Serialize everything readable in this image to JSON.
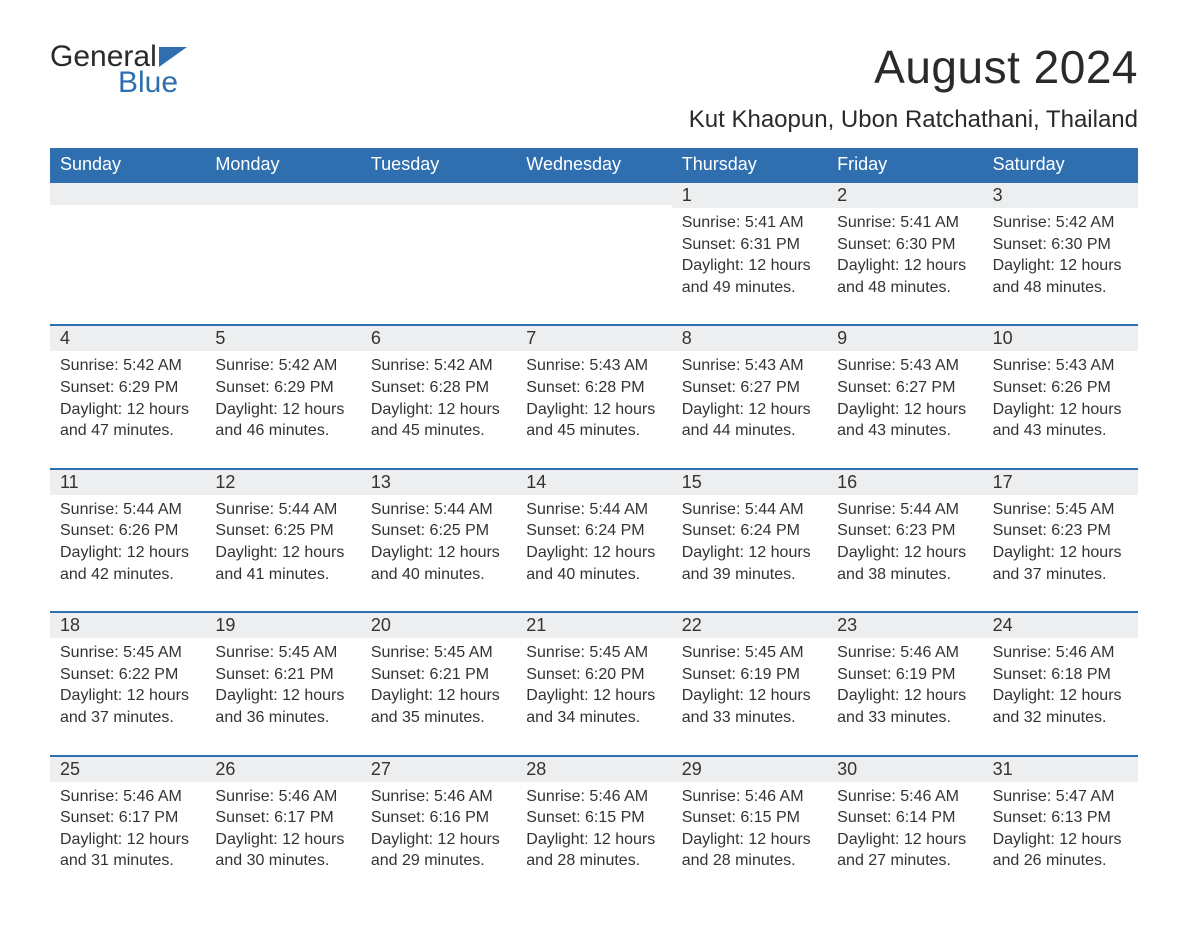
{
  "brand": {
    "name_part1": "General",
    "name_part2": "Blue",
    "text_color": "#2a2a2a",
    "accent_color": "#2f6fb0"
  },
  "title": "August 2024",
  "location": "Kut Khaopun, Ubon Ratchathani, Thailand",
  "colors": {
    "header_bg": "#2f6fb0",
    "header_text": "#ffffff",
    "daynum_bg": "#eceeef",
    "daynum_border": "#2f6fb0",
    "body_text": "#333333",
    "page_bg": "#ffffff"
  },
  "typography": {
    "title_fontsize": 46,
    "location_fontsize": 24,
    "weekday_fontsize": 18,
    "daynum_fontsize": 18,
    "body_fontsize": 16,
    "font_family": "Arial, Helvetica, sans-serif"
  },
  "calendar": {
    "type": "monthly-calendar",
    "columns": 7,
    "weekdays": [
      "Sunday",
      "Monday",
      "Tuesday",
      "Wednesday",
      "Thursday",
      "Friday",
      "Saturday"
    ],
    "leading_blank_cells": 4,
    "days": [
      {
        "n": "1",
        "sunrise": "Sunrise: 5:41 AM",
        "sunset": "Sunset: 6:31 PM",
        "daylight": "Daylight: 12 hours and 49 minutes."
      },
      {
        "n": "2",
        "sunrise": "Sunrise: 5:41 AM",
        "sunset": "Sunset: 6:30 PM",
        "daylight": "Daylight: 12 hours and 48 minutes."
      },
      {
        "n": "3",
        "sunrise": "Sunrise: 5:42 AM",
        "sunset": "Sunset: 6:30 PM",
        "daylight": "Daylight: 12 hours and 48 minutes."
      },
      {
        "n": "4",
        "sunrise": "Sunrise: 5:42 AM",
        "sunset": "Sunset: 6:29 PM",
        "daylight": "Daylight: 12 hours and 47 minutes."
      },
      {
        "n": "5",
        "sunrise": "Sunrise: 5:42 AM",
        "sunset": "Sunset: 6:29 PM",
        "daylight": "Daylight: 12 hours and 46 minutes."
      },
      {
        "n": "6",
        "sunrise": "Sunrise: 5:42 AM",
        "sunset": "Sunset: 6:28 PM",
        "daylight": "Daylight: 12 hours and 45 minutes."
      },
      {
        "n": "7",
        "sunrise": "Sunrise: 5:43 AM",
        "sunset": "Sunset: 6:28 PM",
        "daylight": "Daylight: 12 hours and 45 minutes."
      },
      {
        "n": "8",
        "sunrise": "Sunrise: 5:43 AM",
        "sunset": "Sunset: 6:27 PM",
        "daylight": "Daylight: 12 hours and 44 minutes."
      },
      {
        "n": "9",
        "sunrise": "Sunrise: 5:43 AM",
        "sunset": "Sunset: 6:27 PM",
        "daylight": "Daylight: 12 hours and 43 minutes."
      },
      {
        "n": "10",
        "sunrise": "Sunrise: 5:43 AM",
        "sunset": "Sunset: 6:26 PM",
        "daylight": "Daylight: 12 hours and 43 minutes."
      },
      {
        "n": "11",
        "sunrise": "Sunrise: 5:44 AM",
        "sunset": "Sunset: 6:26 PM",
        "daylight": "Daylight: 12 hours and 42 minutes."
      },
      {
        "n": "12",
        "sunrise": "Sunrise: 5:44 AM",
        "sunset": "Sunset: 6:25 PM",
        "daylight": "Daylight: 12 hours and 41 minutes."
      },
      {
        "n": "13",
        "sunrise": "Sunrise: 5:44 AM",
        "sunset": "Sunset: 6:25 PM",
        "daylight": "Daylight: 12 hours and 40 minutes."
      },
      {
        "n": "14",
        "sunrise": "Sunrise: 5:44 AM",
        "sunset": "Sunset: 6:24 PM",
        "daylight": "Daylight: 12 hours and 40 minutes."
      },
      {
        "n": "15",
        "sunrise": "Sunrise: 5:44 AM",
        "sunset": "Sunset: 6:24 PM",
        "daylight": "Daylight: 12 hours and 39 minutes."
      },
      {
        "n": "16",
        "sunrise": "Sunrise: 5:44 AM",
        "sunset": "Sunset: 6:23 PM",
        "daylight": "Daylight: 12 hours and 38 minutes."
      },
      {
        "n": "17",
        "sunrise": "Sunrise: 5:45 AM",
        "sunset": "Sunset: 6:23 PM",
        "daylight": "Daylight: 12 hours and 37 minutes."
      },
      {
        "n": "18",
        "sunrise": "Sunrise: 5:45 AM",
        "sunset": "Sunset: 6:22 PM",
        "daylight": "Daylight: 12 hours and 37 minutes."
      },
      {
        "n": "19",
        "sunrise": "Sunrise: 5:45 AM",
        "sunset": "Sunset: 6:21 PM",
        "daylight": "Daylight: 12 hours and 36 minutes."
      },
      {
        "n": "20",
        "sunrise": "Sunrise: 5:45 AM",
        "sunset": "Sunset: 6:21 PM",
        "daylight": "Daylight: 12 hours and 35 minutes."
      },
      {
        "n": "21",
        "sunrise": "Sunrise: 5:45 AM",
        "sunset": "Sunset: 6:20 PM",
        "daylight": "Daylight: 12 hours and 34 minutes."
      },
      {
        "n": "22",
        "sunrise": "Sunrise: 5:45 AM",
        "sunset": "Sunset: 6:19 PM",
        "daylight": "Daylight: 12 hours and 33 minutes."
      },
      {
        "n": "23",
        "sunrise": "Sunrise: 5:46 AM",
        "sunset": "Sunset: 6:19 PM",
        "daylight": "Daylight: 12 hours and 33 minutes."
      },
      {
        "n": "24",
        "sunrise": "Sunrise: 5:46 AM",
        "sunset": "Sunset: 6:18 PM",
        "daylight": "Daylight: 12 hours and 32 minutes."
      },
      {
        "n": "25",
        "sunrise": "Sunrise: 5:46 AM",
        "sunset": "Sunset: 6:17 PM",
        "daylight": "Daylight: 12 hours and 31 minutes."
      },
      {
        "n": "26",
        "sunrise": "Sunrise: 5:46 AM",
        "sunset": "Sunset: 6:17 PM",
        "daylight": "Daylight: 12 hours and 30 minutes."
      },
      {
        "n": "27",
        "sunrise": "Sunrise: 5:46 AM",
        "sunset": "Sunset: 6:16 PM",
        "daylight": "Daylight: 12 hours and 29 minutes."
      },
      {
        "n": "28",
        "sunrise": "Sunrise: 5:46 AM",
        "sunset": "Sunset: 6:15 PM",
        "daylight": "Daylight: 12 hours and 28 minutes."
      },
      {
        "n": "29",
        "sunrise": "Sunrise: 5:46 AM",
        "sunset": "Sunset: 6:15 PM",
        "daylight": "Daylight: 12 hours and 28 minutes."
      },
      {
        "n": "30",
        "sunrise": "Sunrise: 5:46 AM",
        "sunset": "Sunset: 6:14 PM",
        "daylight": "Daylight: 12 hours and 27 minutes."
      },
      {
        "n": "31",
        "sunrise": "Sunrise: 5:47 AM",
        "sunset": "Sunset: 6:13 PM",
        "daylight": "Daylight: 12 hours and 26 minutes."
      }
    ]
  }
}
